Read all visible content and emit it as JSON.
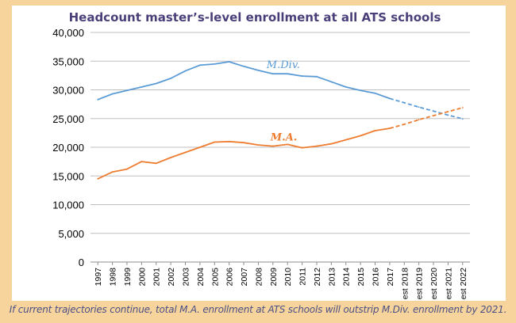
{
  "colors": {
    "background": "#f6d49b",
    "title": "#4b3f7a",
    "mdiv": "#5b9bd5",
    "ma": "#ed7d31",
    "caption": "#4b4f86",
    "grid": "#bfbfbf",
    "axis_text": "#000000"
  },
  "caption": "If current trajectories continue, total M.A. enrollment at ATS schools will outstrip M.Div. enrollment by 2021.",
  "chart_data": {
    "type": "line",
    "title": "Headcount master’s-level enrollment at all ATS schools",
    "xlabel": "",
    "ylabel": "",
    "ylim": [
      0,
      40000
    ],
    "yticks": [
      0,
      5000,
      10000,
      15000,
      20000,
      25000,
      30000,
      35000,
      40000
    ],
    "ytick_labels": [
      "0",
      "5,000",
      "10,000",
      "15,000",
      "20,000",
      "25,000",
      "30,000",
      "35,000",
      "40,000"
    ],
    "grid": true,
    "categories": [
      "1997",
      "1998",
      "1999",
      "2000",
      "2001",
      "2002",
      "2003",
      "2004",
      "2005",
      "2006",
      "2007",
      "2008",
      "2009",
      "2010",
      "2011",
      "2012",
      "2013",
      "2014",
      "2015",
      "2016",
      "2017",
      "est 2018",
      "est 2019",
      "est 2020",
      "est 2021",
      "est 2022"
    ],
    "actual_count": 21,
    "series": [
      {
        "name": "M.Div.",
        "color_key": "mdiv",
        "values": [
          28300,
          29300,
          29900,
          30500,
          31100,
          32000,
          33300,
          34300,
          34500,
          34900,
          34100,
          33400,
          32800,
          32800,
          32400,
          32300,
          31400,
          30500,
          29900,
          29400,
          28500,
          27750,
          27000,
          26300,
          25600,
          24950
        ]
      },
      {
        "name": "M.A.",
        "color_key": "ma",
        "values": [
          14500,
          15700,
          16200,
          17500,
          17200,
          18200,
          19100,
          20000,
          20900,
          21000,
          20800,
          20400,
          20200,
          20500,
          19900,
          20200,
          20600,
          21300,
          22000,
          22900,
          23300,
          24000,
          24800,
          25500,
          26200,
          26900
        ]
      }
    ],
    "annotations": [
      "M.Div.",
      "M.A."
    ]
  }
}
